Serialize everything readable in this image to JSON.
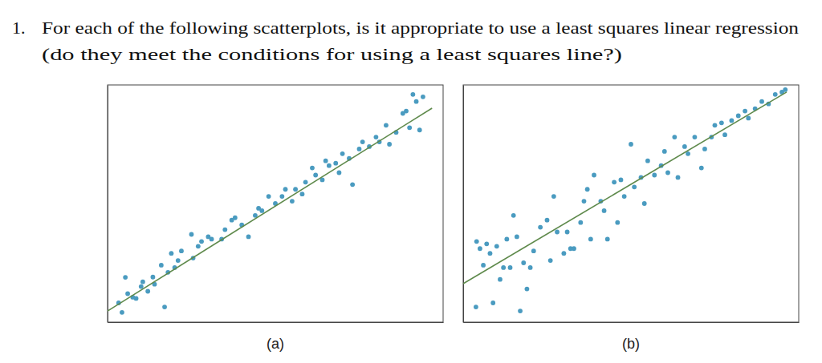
{
  "question": {
    "number": "1.",
    "lines": [
      "For each of the following scatterplots, is it appropriate to use a least squares linear regression",
      "(do they meet the conditions for using a least squares line?)"
    ]
  },
  "chart_data": [
    {
      "type": "scatter",
      "title": "(a)",
      "xlim": [
        0,
        10
      ],
      "ylim": [
        0,
        10
      ],
      "tick_labels": false,
      "grid": false,
      "series": [
        {
          "type": "scatter",
          "color": "#4a9bc0",
          "marker": "circle",
          "x": [
            0.33,
            0.43,
            0.53,
            0.6,
            0.75,
            0.85,
            1.0,
            1.05,
            1.2,
            1.35,
            1.4,
            1.6,
            1.7,
            1.8,
            1.9,
            2.0,
            2.1,
            2.2,
            2.5,
            2.55,
            2.7,
            2.8,
            3.0,
            3.1,
            3.4,
            3.5,
            3.7,
            3.8,
            4.0,
            4.2,
            4.4,
            4.5,
            4.6,
            4.8,
            5.0,
            5.2,
            5.3,
            5.5,
            5.6,
            5.8,
            5.9,
            6.1,
            6.2,
            6.4,
            6.5,
            6.6,
            6.8,
            6.9,
            7.0,
            7.2,
            7.3,
            7.5,
            7.6,
            7.8,
            8.0,
            8.1,
            8.3,
            8.4,
            8.6,
            8.8,
            8.9,
            9.0,
            9.1,
            9.2,
            9.3,
            9.4
          ],
          "values": [
            0.81,
            0.41,
            1.89,
            1.2,
            1.05,
            1.0,
            1.5,
            1.7,
            1.3,
            1.9,
            1.6,
            2.4,
            0.64,
            2.1,
            2.9,
            2.3,
            2.6,
            3.0,
            3.7,
            2.7,
            3.2,
            3.4,
            3.6,
            3.5,
            3.5,
            3.9,
            4.3,
            4.4,
            4.1,
            3.6,
            4.5,
            4.8,
            4.7,
            5.3,
            5.0,
            5.3,
            5.6,
            5.1,
            5.6,
            5.4,
            5.9,
            6.5,
            6.2,
            6.0,
            6.8,
            6.6,
            6.7,
            6.3,
            7.1,
            6.9,
            5.8,
            7.3,
            7.6,
            7.4,
            7.8,
            7.6,
            8.3,
            7.5,
            8.0,
            8.8,
            8.9,
            8.2,
            9.6,
            9.3,
            8.1,
            9.5
          ]
        },
        {
          "type": "line",
          "color": "#5f8a4c",
          "line_style": "solid",
          "x": [
            0,
            9.67
          ],
          "values": [
            0.47,
            9.02
          ]
        }
      ]
    },
    {
      "type": "scatter",
      "title": "(b)",
      "xlim": [
        0,
        10
      ],
      "ylim": [
        0,
        10
      ],
      "tick_labels": false,
      "grid": false,
      "series": [
        {
          "type": "scatter",
          "color": "#4a9bc0",
          "marker": "circle",
          "x": [
            0.38,
            0.4,
            0.5,
            0.6,
            0.7,
            0.8,
            0.89,
            1.0,
            1.1,
            1.2,
            1.3,
            1.4,
            1.5,
            1.6,
            1.7,
            1.8,
            1.9,
            2.0,
            2.1,
            2.3,
            2.5,
            2.6,
            2.7,
            2.8,
            3.0,
            3.1,
            3.2,
            3.3,
            3.5,
            3.6,
            3.7,
            3.8,
            3.9,
            4.1,
            4.2,
            4.3,
            4.5,
            4.6,
            4.7,
            4.8,
            5.0,
            5.1,
            5.3,
            5.4,
            5.5,
            5.7,
            5.9,
            6.0,
            6.1,
            6.3,
            6.4,
            6.6,
            6.7,
            6.9,
            7.1,
            7.2,
            7.4,
            7.5,
            7.7,
            7.8,
            8.0,
            8.2,
            8.4,
            8.5,
            8.7,
            8.9,
            9.1,
            9.3,
            9.5,
            9.6
          ],
          "values": [
            0.64,
            3.4,
            3.1,
            2.4,
            3.3,
            2.9,
            0.81,
            3.2,
            1.8,
            2.3,
            3.5,
            2.3,
            4.5,
            3.6,
            0.47,
            2.5,
            1.4,
            2.3,
            3.0,
            4.0,
            4.3,
            2.6,
            5.3,
            3.8,
            2.9,
            3.8,
            3.1,
            3.1,
            4.2,
            5.1,
            5.6,
            3.5,
            6.2,
            5.1,
            4.7,
            3.5,
            5.9,
            4.2,
            6.0,
            5.3,
            7.5,
            5.7,
            6.1,
            5.0,
            6.8,
            6.2,
            6.6,
            7.2,
            6.3,
            7.8,
            6.1,
            7.4,
            7.1,
            7.8,
            6.5,
            7.3,
            7.8,
            8.3,
            8.4,
            7.9,
            8.5,
            8.7,
            8.9,
            8.6,
            9.0,
            9.3,
            9.2,
            9.6,
            9.7,
            9.8
          ]
        },
        {
          "type": "line",
          "color": "#5f8a4c",
          "line_style": "solid",
          "x": [
            0,
            9.64
          ],
          "values": [
            1.62,
            9.7
          ]
        }
      ]
    }
  ]
}
